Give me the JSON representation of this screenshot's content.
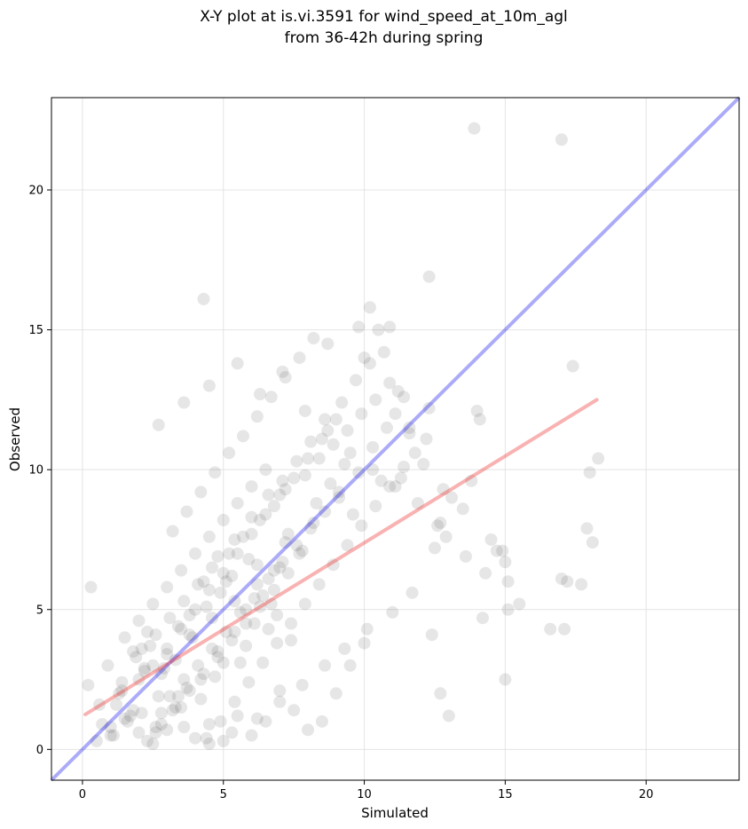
{
  "chart_data": {
    "type": "scatter",
    "title": "X-Y plot at is.vi.3591 for wind_speed_at_10m_agl",
    "subtitle": "from 36-42h during spring",
    "xlabel": "Simulated",
    "ylabel": "Observed",
    "xlim": [
      -1.1,
      23.3
    ],
    "ylim": [
      -1.1,
      23.3
    ],
    "xticks": [
      0,
      5,
      10,
      15,
      20
    ],
    "yticks": [
      0,
      5,
      10,
      15,
      20
    ],
    "xtick_labels": [
      "0",
      "5",
      "10",
      "15",
      "20"
    ],
    "ytick_labels": [
      "0",
      "5",
      "10",
      "15",
      "20"
    ],
    "grid": true,
    "point_color": "#333333",
    "one_to_one_color": "#0000ee",
    "regression_color": "#ee2222",
    "one_to_one_line": {
      "x": [
        -1.1,
        23.3
      ],
      "y": [
        -1.1,
        23.3
      ]
    },
    "regression_line": {
      "x": [
        0.1,
        18.25
      ],
      "y": [
        1.25,
        12.5
      ]
    },
    "points": {
      "x": [
        13.9,
        17.0,
        12.3,
        4.3,
        10.2,
        9.8,
        10.5,
        10.9,
        8.7,
        10.0,
        11.4,
        12.3,
        11.6,
        17.4,
        14.0,
        14.1,
        10.6,
        12.8,
        13.1,
        12.6,
        12.5,
        14.5,
        14.7,
        15.1,
        15.5,
        13.5,
        17.0,
        17.2,
        17.9,
        18.1,
        18.3,
        18.0,
        17.7,
        17.1,
        16.6,
        15.1,
        15.0,
        15.0,
        14.9,
        14.2,
        13.8,
        13.0,
        12.7,
        12.4,
        12.1,
        10.0,
        9.5,
        9.0,
        8.5,
        8.0,
        7.5,
        7.0,
        6.5,
        6.0,
        5.5,
        5.0,
        4.5,
        4.0,
        3.5,
        3.0,
        2.5,
        2.0,
        1.5,
        1.0,
        0.5,
        0.2,
        0.3,
        5.8,
        5.4,
        4.8,
        5.1,
        6.2,
        6.7,
        7.2,
        7.7,
        8.2,
        9.1,
        9.6,
        6.9,
        7.4,
        6.1,
        5.6,
        4.7,
        4.2,
        3.7,
        3.2,
        2.7,
        2.2,
        1.7,
        1.2,
        0.7,
        1.4,
        1.9,
        2.4,
        2.9,
        3.4,
        3.9,
        4.4,
        4.9,
        5.3,
        5.9,
        6.4,
        6.8,
        7.3,
        7.8,
        8.3,
        8.8,
        9.3,
        9.8,
        10.3,
        10.8,
        11.3,
        11.8,
        12.2,
        2.1,
        2.6,
        3.1,
        3.6,
        4.1,
        4.6,
        5.2,
        5.7,
        6.3,
        6.8,
        7.2,
        7.9,
        8.4,
        8.9,
        9.4,
        9.9,
        10.4,
        10.9,
        11.2,
        0.9,
        1.3,
        1.8,
        2.3,
        2.8,
        3.3,
        3.8,
        4.3,
        4.8,
        5.4,
        6.0,
        6.6,
        7.1,
        7.6,
        8.1,
        8.6,
        9.2,
        9.7,
        10.2,
        10.7,
        11.1,
        11.6,
        1.1,
        1.6,
        2.1,
        2.6,
        3.1,
        3.6,
        4.1,
        4.6,
        5.1,
        5.6,
        6.1,
        6.6,
        7.1,
        7.6,
        8.1,
        8.6,
        9.1,
        2.0,
        2.5,
        3.0,
        3.5,
        4.0,
        4.5,
        5.0,
        5.5,
        6.0,
        6.5,
        7.0,
        7.5,
        8.0,
        8.5,
        9.0,
        3.2,
        3.7,
        4.2,
        4.7,
        5.2,
        5.7,
        6.2,
        6.7,
        7.2,
        7.7,
        8.2,
        4.4,
        4.9,
        5.4,
        5.9,
        6.4,
        6.9,
        7.4,
        7.9,
        8.4,
        8.9,
        9.4,
        9.9,
        10.4,
        10.9,
        11.4,
        2.3,
        2.8,
        3.3,
        3.8,
        4.3,
        4.8,
        5.3,
        5.8,
        6.3,
        6.8,
        7.3,
        1.5,
        2.0,
        2.5,
        3.0,
        3.5,
        4.0,
        4.5,
        5.0,
        5.5,
        6.0,
        6.5,
        0.6,
        1.0,
        1.4,
        1.8,
        2.2,
        2.6,
        3.0,
        3.4,
        3.8,
        4.2,
        4.6,
        5.0,
        5.4,
        5.8,
        6.2,
        6.6,
        7.0,
        2.7,
        3.6,
        4.5,
        5.5,
        6.3,
        7.1,
        7.9,
        8.7,
        9.5,
        10.3,
        11.1,
        11.9,
        12.7,
        12.9,
        13.6,
        14.3,
        11.7,
        11.0,
        10.1,
        9.3,
        8.6,
        7.8,
        7.0,
        6.2,
        5.3,
        4.5,
        3.6,
        2.8
      ],
      "y": [
        22.2,
        21.8,
        16.9,
        16.1,
        15.8,
        15.1,
        15.0,
        15.1,
        14.5,
        14.0,
        12.6,
        12.2,
        11.5,
        13.7,
        12.1,
        11.8,
        9.6,
        9.3,
        9.0,
        8.0,
        7.2,
        7.5,
        7.1,
        6.0,
        5.2,
        8.6,
        6.1,
        6.0,
        7.9,
        7.4,
        10.4,
        9.9,
        5.9,
        4.3,
        4.3,
        5.0,
        6.7,
        2.5,
        7.1,
        4.7,
        9.6,
        1.2,
        2.0,
        4.1,
        10.2,
        3.8,
        3.0,
        2.0,
        1.0,
        0.7,
        1.4,
        2.1,
        1.0,
        0.5,
        1.2,
        0.3,
        0.9,
        0.4,
        1.5,
        0.7,
        0.2,
        0.6,
        1.1,
        0.5,
        0.3,
        2.3,
        5.8,
        5.0,
        4.2,
        3.5,
        6.0,
        6.6,
        5.2,
        7.4,
        7.0,
        8.1,
        9.0,
        8.4,
        4.8,
        3.9,
        4.5,
        3.1,
        2.6,
        1.8,
        2.2,
        1.4,
        1.9,
        2.8,
        1.2,
        1.6,
        0.9,
        2.4,
        3.3,
        3.7,
        2.9,
        4.4,
        4.0,
        5.1,
        5.6,
        6.2,
        6.8,
        5.5,
        6.4,
        7.7,
        7.1,
        8.8,
        9.5,
        10.2,
        9.9,
        10.8,
        11.5,
        9.7,
        10.6,
        11.1,
        3.6,
        4.1,
        4.7,
        5.3,
        5.9,
        6.5,
        7.0,
        7.6,
        8.2,
        8.7,
        9.3,
        9.8,
        10.4,
        10.9,
        11.4,
        12.0,
        12.5,
        13.1,
        12.8,
        3.0,
        2.0,
        3.5,
        4.2,
        2.7,
        3.2,
        4.8,
        6.0,
        6.9,
        7.5,
        8.3,
        9.1,
        9.6,
        10.3,
        11.0,
        11.8,
        12.4,
        13.2,
        13.8,
        14.2,
        12.0,
        11.3,
        0.5,
        1.0,
        1.3,
        0.8,
        1.9,
        2.5,
        3.0,
        3.6,
        4.2,
        4.9,
        5.4,
        6.1,
        6.7,
        7.3,
        7.9,
        8.5,
        9.2,
        2.5,
        3.0,
        3.6,
        4.3,
        5.0,
        5.7,
        6.3,
        7.0,
        7.7,
        8.4,
        9.1,
        9.7,
        10.4,
        11.1,
        11.8,
        7.8,
        8.5,
        9.2,
        9.9,
        10.6,
        11.2,
        11.9,
        12.6,
        13.3,
        14.0,
        14.7,
        0.4,
        1.0,
        1.7,
        2.4,
        3.1,
        3.8,
        4.5,
        5.2,
        5.9,
        6.6,
        7.3,
        8.0,
        8.7,
        9.4,
        10.1,
        0.3,
        0.9,
        1.5,
        2.1,
        2.7,
        3.3,
        3.9,
        4.5,
        5.1,
        5.7,
        6.3,
        4.0,
        4.6,
        5.2,
        5.8,
        6.4,
        7.0,
        7.6,
        8.2,
        8.8,
        9.4,
        10.0,
        1.6,
        0.8,
        2.1,
        1.4,
        2.9,
        0.6,
        3.4,
        1.9,
        4.1,
        2.5,
        4.7,
        3.1,
        5.3,
        3.7,
        5.9,
        4.3,
        6.5,
        11.6,
        12.4,
        13.0,
        13.8,
        12.7,
        13.5,
        12.1,
        11.4,
        10.6,
        10.0,
        9.4,
        8.8,
        8.1,
        7.6,
        6.9,
        6.3,
        5.6,
        4.9,
        4.3,
        3.6,
        3.0,
        2.3,
        1.7,
        1.1,
        0.6,
        0.2,
        0.8,
        1.3
      ]
    }
  }
}
